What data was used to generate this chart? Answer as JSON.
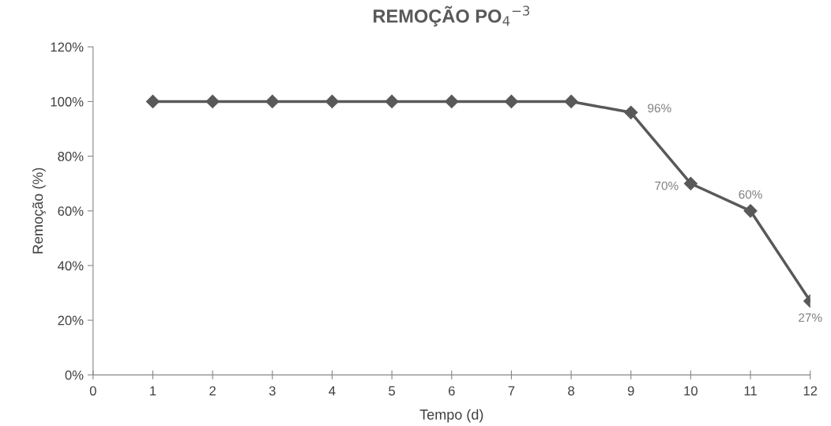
{
  "chart_data": {
    "type": "line",
    "title": "REMOÇÃO PO$_{4}$$^{−3}$",
    "xlabel": "Tempo (d)",
    "ylabel": "Remoção (%)",
    "x": [
      1,
      2,
      3,
      4,
      5,
      6,
      7,
      8,
      9,
      10,
      11,
      12
    ],
    "series": [
      {
        "color": "#595959",
        "values": [
          100,
          100,
          100,
          100,
          100,
          100,
          100,
          100,
          96,
          70,
          60,
          27
        ],
        "value_labels": [
          null,
          null,
          null,
          null,
          null,
          null,
          null,
          null,
          "96%",
          "70%",
          "60%",
          "27%"
        ]
      }
    ],
    "xlim": [
      0,
      12
    ],
    "xticks": [
      0,
      1,
      2,
      3,
      4,
      5,
      6,
      7,
      8,
      9,
      10,
      11,
      12
    ],
    "ylim": [
      0,
      120
    ],
    "yticks": [
      {
        "value": 0,
        "label": "0%"
      },
      {
        "value": 20,
        "label": "20%"
      },
      {
        "value": 40,
        "label": "40%"
      },
      {
        "value": 60,
        "label": "60%"
      },
      {
        "value": 80,
        "label": "80%"
      },
      {
        "value": 100,
        "label": "100%"
      },
      {
        "value": 120,
        "label": "120%"
      }
    ],
    "marker": "diamond",
    "line_style": "solid",
    "grid": false,
    "legend": false
  }
}
